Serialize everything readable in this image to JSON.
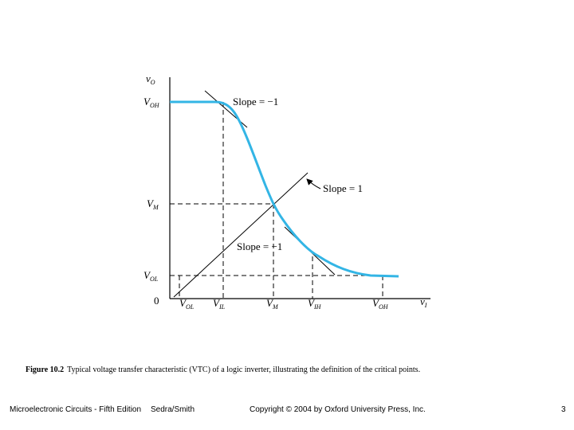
{
  "axes": {
    "y_var": "v",
    "y_sub": "O",
    "x_var": "v",
    "x_sub": "I",
    "origin": "0"
  },
  "y_ticks": {
    "voh": {
      "main": "V",
      "sub": "OH"
    },
    "vm": {
      "main": "V",
      "sub": "M"
    },
    "vol": {
      "main": "V",
      "sub": "OL"
    }
  },
  "x_ticks": {
    "vol": {
      "main": "V",
      "sub": "OL"
    },
    "vil": {
      "main": "V",
      "sub": "IL"
    },
    "vm": {
      "main": "V",
      "sub": "M"
    },
    "vih": {
      "main": "V",
      "sub": "IH"
    },
    "voh": {
      "main": "V",
      "sub": "OH"
    }
  },
  "annotations": {
    "slope_top": "Slope = −1",
    "slope_unity": "Slope = 1",
    "slope_bottom": "Slope = −1"
  },
  "colors": {
    "curve": "#33b5e5",
    "lines": "#000000"
  },
  "caption": {
    "label": "Figure 10.2",
    "text": "Typical voltage transfer characteristic (VTC) of a logic inverter, illustrating the definition of the critical points."
  },
  "footer": {
    "book": "Microelectronic Circuits - Fifth Edition",
    "authors": "Sedra/Smith",
    "copyright": "Copyright © 2004 by Oxford University Press, Inc.",
    "page": "3"
  }
}
